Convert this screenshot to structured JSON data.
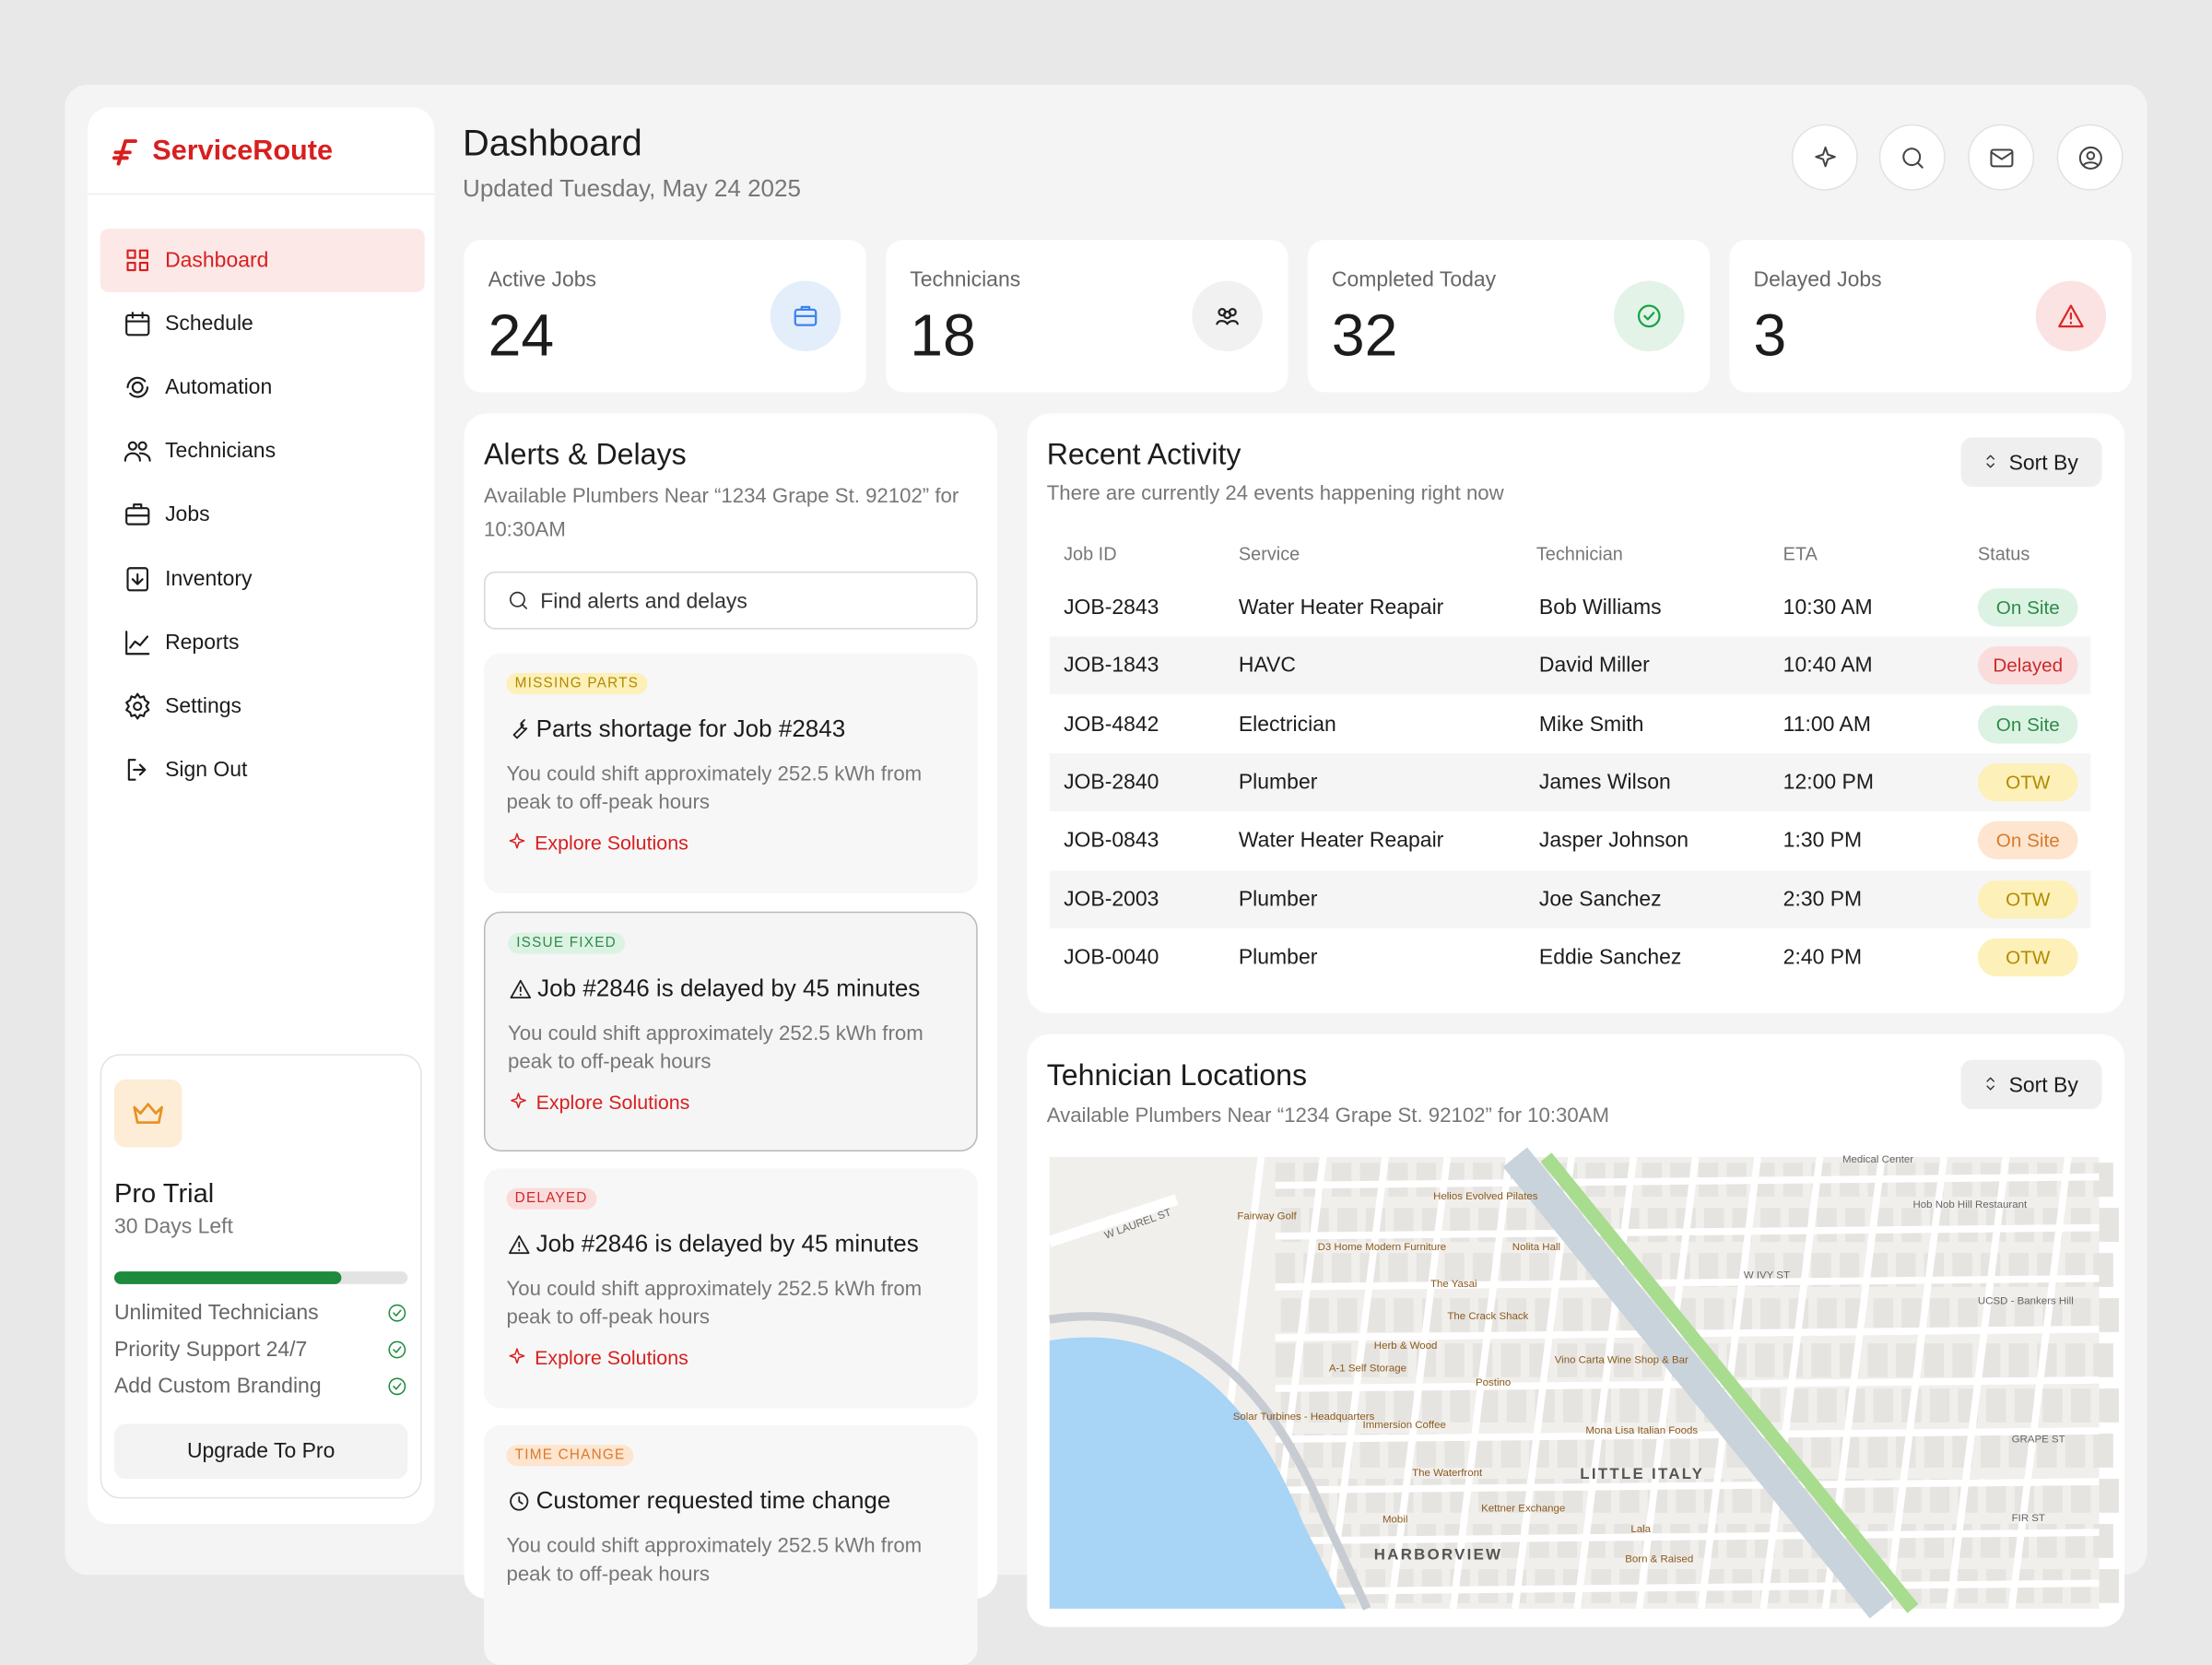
{
  "sidebar": {
    "brand": "ServiceRoute",
    "nav": [
      "Dashboard",
      "Schedule",
      "Automation",
      "Technicians",
      "Jobs",
      "Inventory",
      "Reports",
      "Settings",
      "Sign Out"
    ],
    "trial": {
      "title": "Pro Trial",
      "subtitle": "30 Days Left",
      "features": [
        "Unlimited Technicians",
        "Priority Support 24/7",
        "Add Custom Branding"
      ],
      "button": "Upgrade To Pro"
    }
  },
  "header": {
    "title": "Dashboard",
    "subtitle": "Updated Tuesday, May 24 2025"
  },
  "stats": [
    {
      "label": "Active Jobs",
      "value": 24,
      "color": "#3b82f6"
    },
    {
      "label": "Technicians",
      "value": 18,
      "color": "#222222"
    },
    {
      "label": "Completed Today",
      "value": 32,
      "color": "#16a34a"
    },
    {
      "label": "Delayed Jobs",
      "value": 3,
      "color": "#dc2626"
    }
  ],
  "alerts": {
    "title": "Alerts & Delays",
    "subtitle": "Available Plumbers Near “1234 Grape St. 92102” for 10:30AM",
    "search_placeholder": "Find alerts and delays",
    "items": [
      {
        "tag": "MISSING PARTS",
        "color": "yellow",
        "title": "Parts shortage for Job #2843",
        "body": "You could shift approximately 252.5 kWh from peak to off-peak hours",
        "action": "Explore Solutions"
      },
      {
        "tag": "ISSUE FIXED",
        "color": "green",
        "title": "Job #2846 is delayed by 45 minutes",
        "body": "You could shift approximately 252.5 kWh from peak to off-peak hours",
        "action": "Explore Solutions"
      },
      {
        "tag": "DELAYED",
        "color": "red",
        "title": "Job #2846 is delayed by 45 minutes",
        "body": "You could shift approximately 252.5 kWh from peak to off-peak hours",
        "action": "Explore Solutions"
      },
      {
        "tag": "TIME CHANGE",
        "color": "orange",
        "title": "Customer requested time change",
        "body": "You could shift approximately 252.5 kWh from peak to off-peak hours"
      }
    ]
  },
  "activity": {
    "title": "Recent Activity",
    "subtitle": "There are currently 24 events happening right now",
    "sort": "Sort By",
    "columns": [
      "Job ID",
      "Service",
      "Technician",
      "ETA",
      "Status"
    ],
    "rows": [
      {
        "job_id": "JOB-2843",
        "service": "Water Heater Reapair",
        "technician": "Bob Williams",
        "eta": "10:30 AM",
        "status": "On Site",
        "status_color": "green"
      },
      {
        "job_id": "JOB-1843",
        "service": "HAVC",
        "technician": "David Miller",
        "eta": "10:40 AM",
        "status": "Delayed",
        "status_color": "red"
      },
      {
        "job_id": "JOB-4842",
        "service": "Electrician",
        "technician": "Mike Smith",
        "eta": "11:00 AM",
        "status": "On Site",
        "status_color": "green"
      },
      {
        "job_id": "JOB-2840",
        "service": "Plumber",
        "technician": "James Wilson",
        "eta": "12:00 PM",
        "status": "OTW",
        "status_color": "yellow"
      },
      {
        "job_id": "JOB-0843",
        "service": "Water Heater Reapair",
        "technician": "Jasper Johnson",
        "eta": "1:30 PM",
        "status": "On Site",
        "status_color": "orange"
      },
      {
        "job_id": "JOB-2003",
        "service": "Plumber",
        "technician": "Joe Sanchez",
        "eta": "2:30 PM",
        "status": "OTW",
        "status_color": "yellow"
      },
      {
        "job_id": "JOB-0040",
        "service": "Plumber",
        "technician": "Eddie Sanchez",
        "eta": "2:40 PM",
        "status": "OTW",
        "status_color": "yellow"
      }
    ]
  },
  "locations": {
    "title": "Tehnician Locations",
    "subtitle": "Available Plumbers Near “1234 Grape St. 92102” for 10:30AM",
    "sort": "Sort By",
    "map_labels": [
      "W LAUREL ST",
      "Fairway Golf",
      "Helios Evolved Pilates",
      "D3 Home Modern Furniture",
      "Nolita Hall",
      "The Yasai",
      "The Crack Shack",
      "Herb & Wood",
      "Vino Carta Wine Shop & Bar",
      "A-1 Self Storage",
      "Postino",
      "Solar Turbines - Headquarters",
      "Immersion Coffee",
      "Mona Lisa Italian Foods",
      "The Waterfront",
      "LITTLE ITALY",
      "Kettner Exchange",
      "Mobil",
      "Lala",
      "Born & Raised",
      "HARBORVIEW",
      "Medical Center",
      "Hob Nob Hill Restaurant",
      "UCSD - Bankers Hill",
      "W IVY ST",
      "GRAPE ST",
      "FIR ST"
    ]
  }
}
